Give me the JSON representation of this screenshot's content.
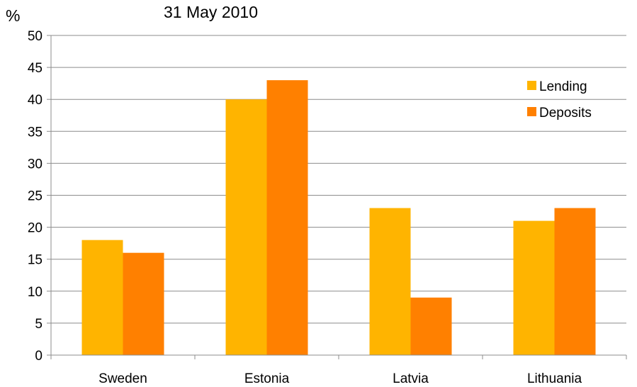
{
  "chart_data": {
    "type": "bar",
    "title": "",
    "subtitle": "31 May 2010",
    "ylabel": "%",
    "xlabel": "",
    "ylim": [
      0,
      50
    ],
    "yticks": [
      "0",
      "5",
      "10",
      "15",
      "20",
      "25",
      "30",
      "35",
      "40",
      "45",
      "50"
    ],
    "grid": true,
    "legend_position": "top-right",
    "categories": [
      "Sweden",
      "Estonia",
      "Latvia",
      "Lithuania"
    ],
    "series": [
      {
        "name": "Lending",
        "color": "#FFB400",
        "values": [
          18,
          40,
          23,
          21
        ]
      },
      {
        "name": "Deposits",
        "color": "#FF8000",
        "values": [
          16,
          43,
          9,
          23
        ]
      }
    ]
  }
}
